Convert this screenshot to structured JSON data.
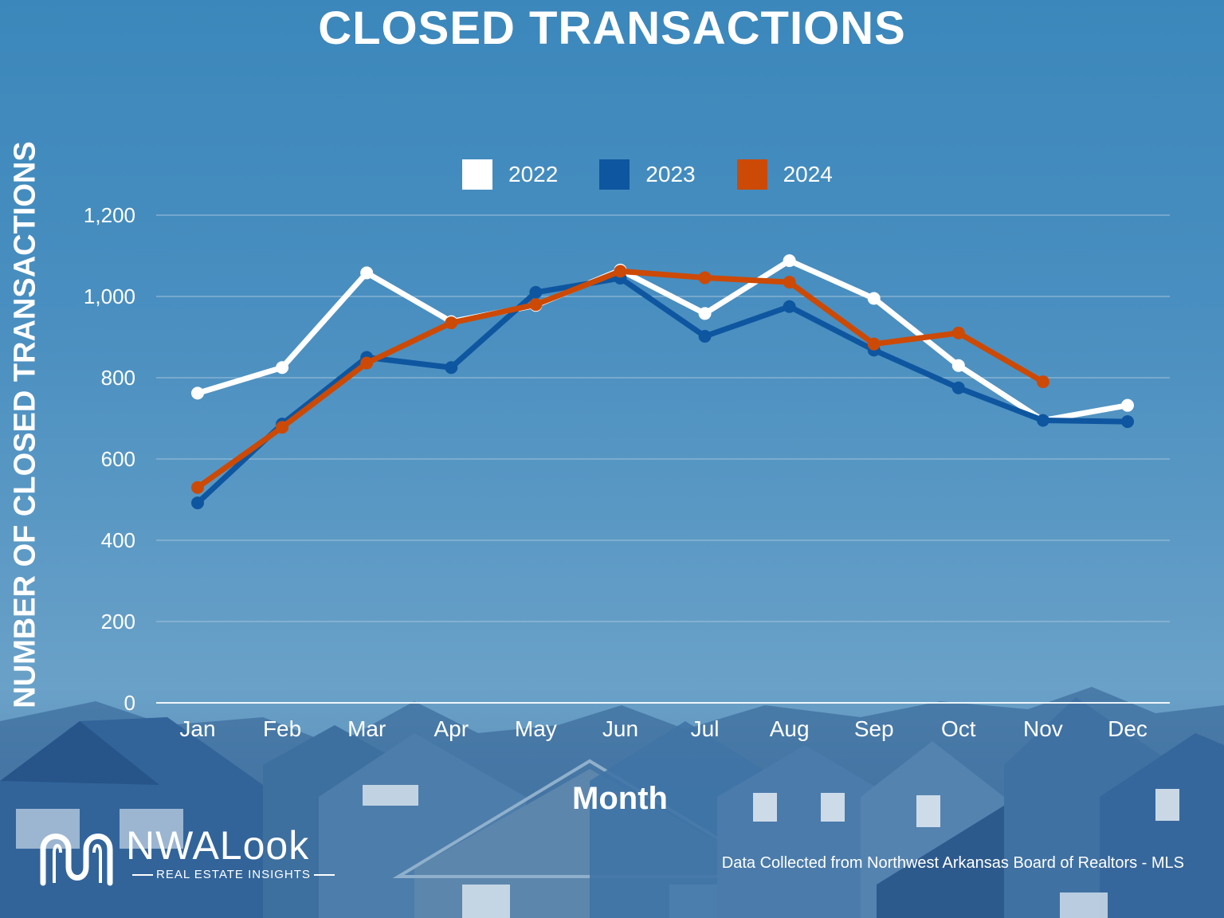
{
  "colors": {
    "s2022": "#ffffff",
    "s2023": "#0f56a0",
    "s2024": "#cc4a06",
    "grid": "#a9c6dd"
  },
  "brand": {
    "name": "NWALook",
    "tagline": "REAL ESTATE INSIGHTS"
  },
  "source_note": "Data Collected from Northwest Arkansas Board of Realtors - MLS",
  "chart_data": {
    "type": "line",
    "title": "CLOSED TRANSACTIONS",
    "xlabel": "Month",
    "ylabel": "NUMBER OF CLOSED TRANSACTIONS",
    "categories": [
      "Jan",
      "Feb",
      "Mar",
      "Apr",
      "May",
      "Jun",
      "Jul",
      "Aug",
      "Sep",
      "Oct",
      "Nov",
      "Dec"
    ],
    "ylim": [
      0,
      1200
    ],
    "yticks": [
      0,
      200,
      400,
      600,
      800,
      1000,
      1200
    ],
    "ytick_labels": [
      "0",
      "200",
      "400",
      "600",
      "800",
      "1,000",
      "1,200"
    ],
    "grid": true,
    "legend_position": "top-center",
    "series": [
      {
        "name": "2022",
        "color_key": "s2022",
        "values": [
          762,
          825,
          1058,
          938,
          978,
          1065,
          958,
          1088,
          995,
          830,
          695,
          732
        ]
      },
      {
        "name": "2023",
        "color_key": "s2023",
        "values": [
          492,
          686,
          850,
          825,
          1010,
          1045,
          902,
          975,
          868,
          775,
          695,
          692
        ]
      },
      {
        "name": "2024",
        "color_key": "s2024",
        "values": [
          530,
          678,
          836,
          935,
          980,
          1062,
          1046,
          1035,
          883,
          910,
          790,
          null
        ]
      }
    ]
  }
}
